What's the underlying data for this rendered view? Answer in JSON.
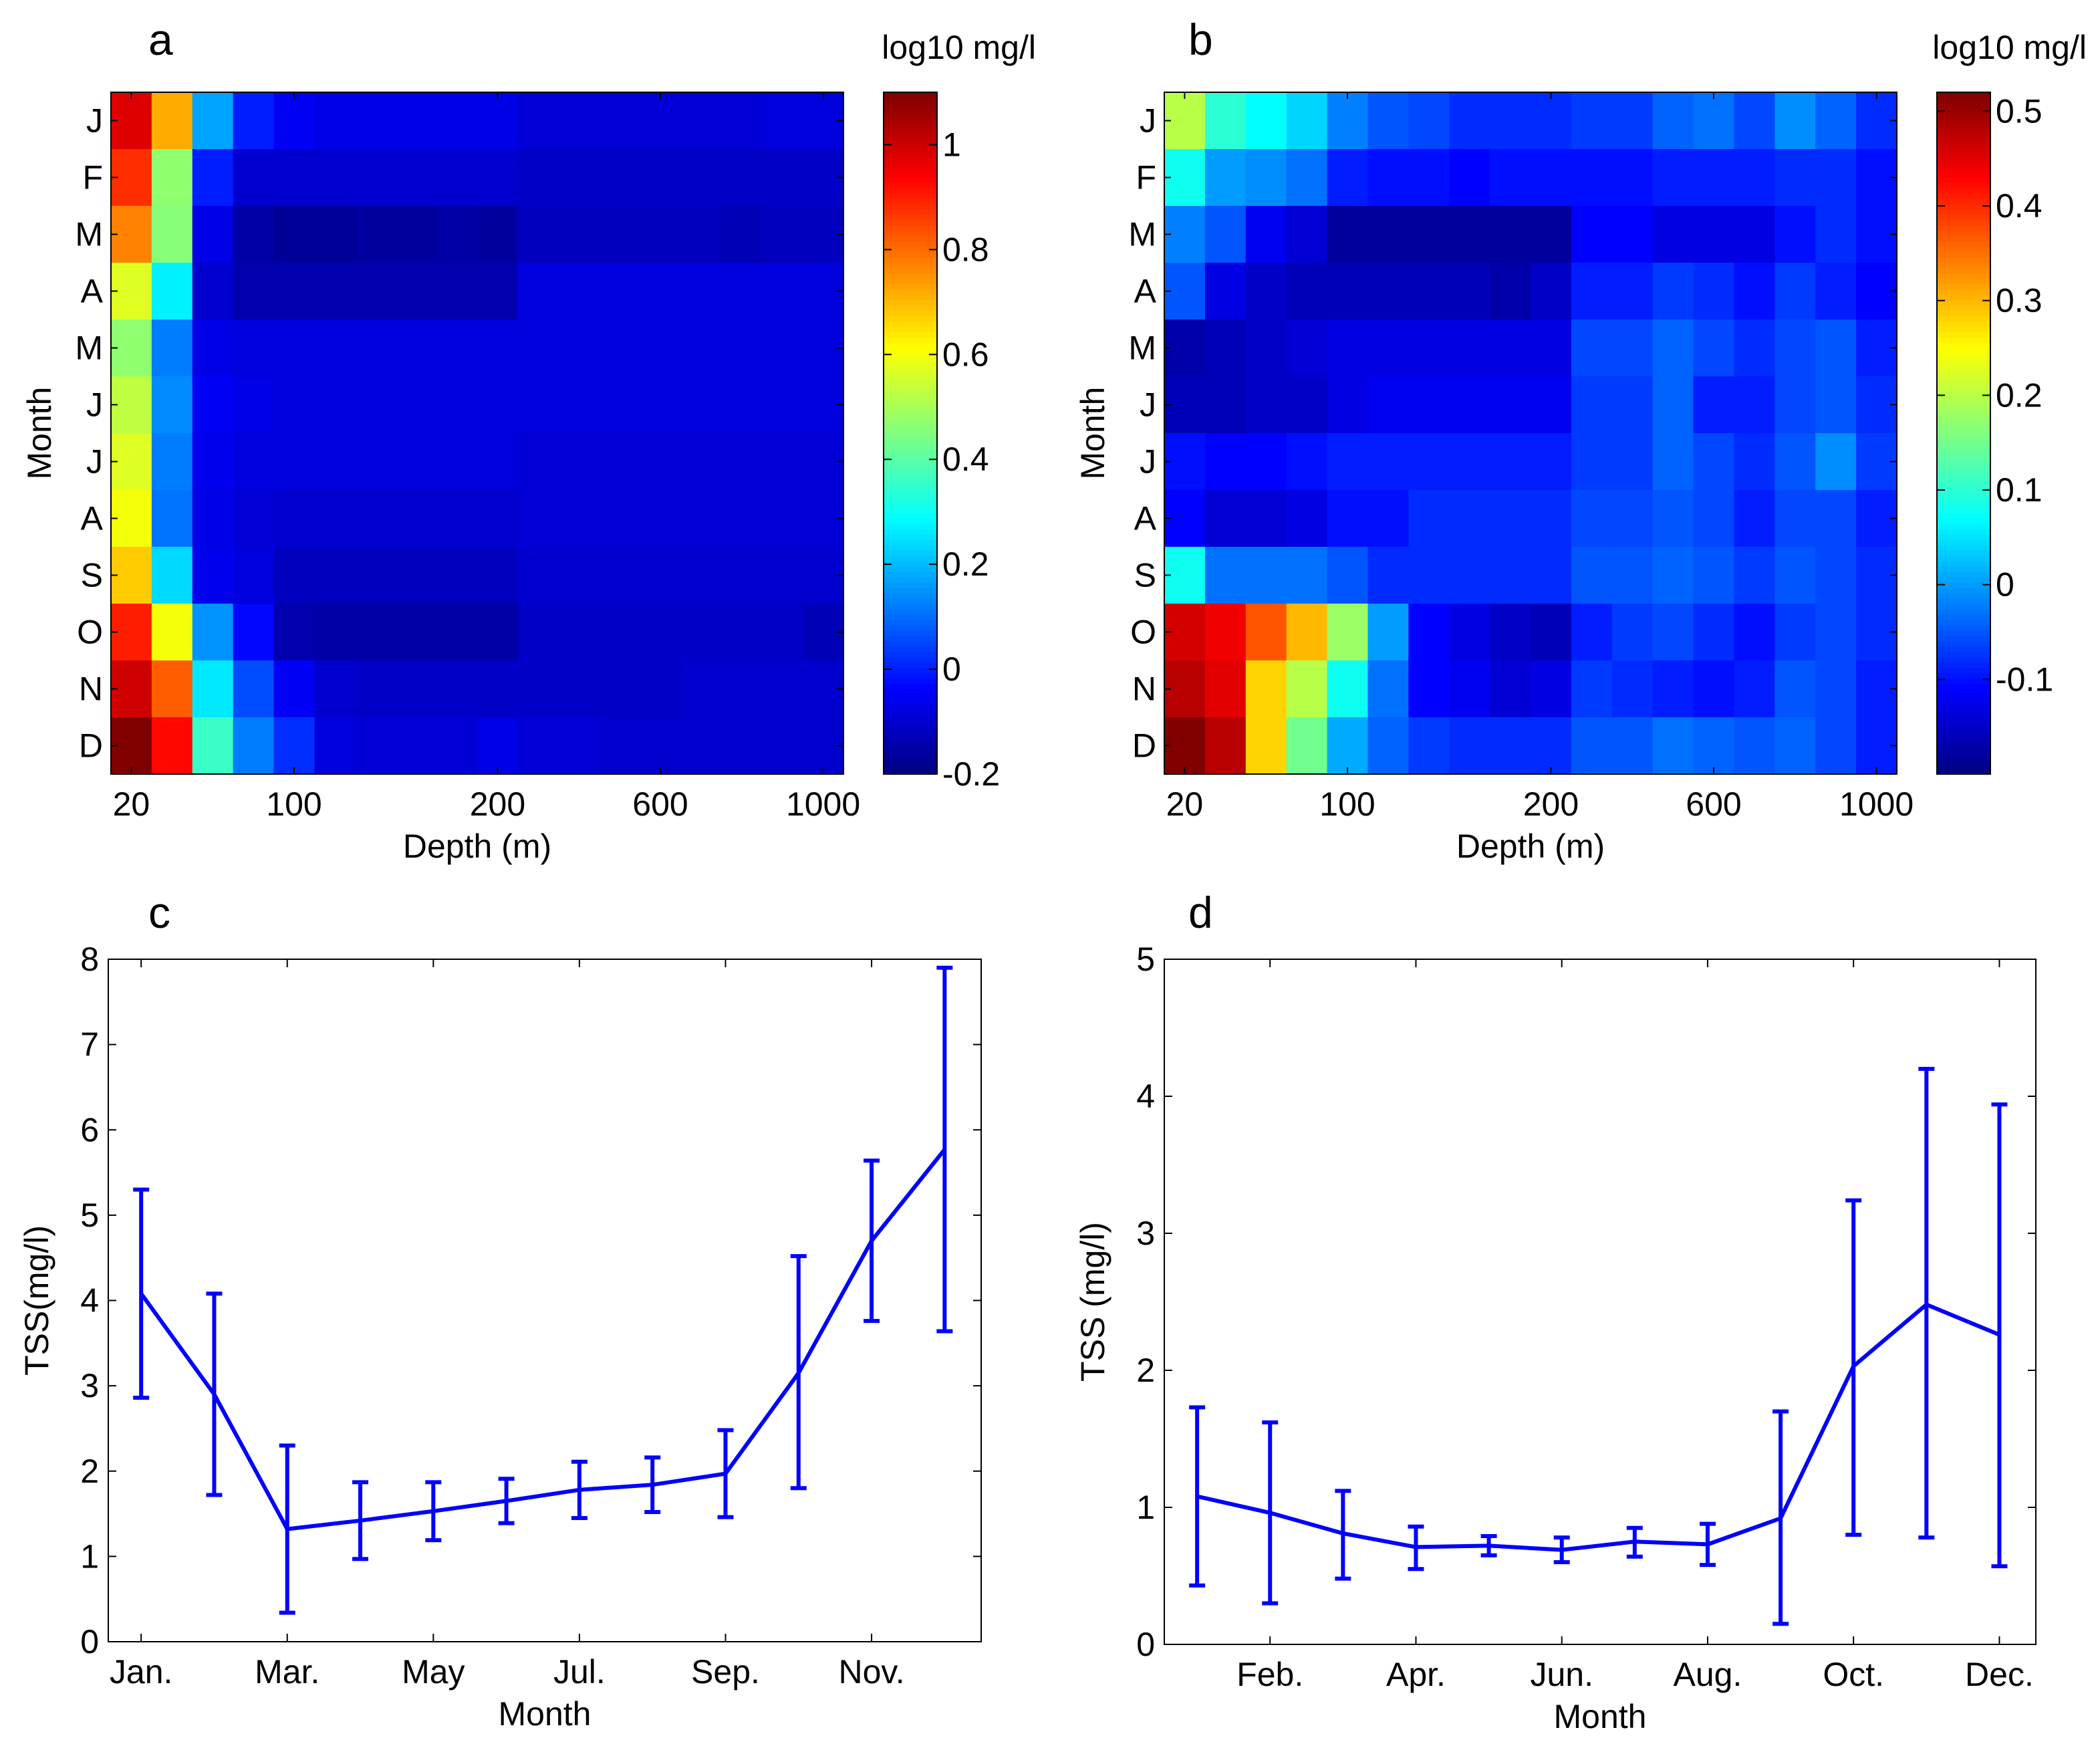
{
  "colors": {
    "line": "#0000ff",
    "axis": "#000000",
    "background": "#ffffff",
    "colormap": "jet"
  },
  "chart_data": [
    {
      "panel": "a",
      "type": "heatmap",
      "title": "",
      "colorbar_label": "log10 mg/l",
      "xlabel": "Depth (m)",
      "ylabel": "Month",
      "x_ticklabels": [
        "20",
        "100",
        "200",
        "600",
        "1000"
      ],
      "x_tick_columns": [
        0.5,
        4.5,
        9.5,
        13.5,
        17.5
      ],
      "y_ticklabels": [
        "J",
        "F",
        "M",
        "A",
        "M",
        "J",
        "J",
        "A",
        "S",
        "O",
        "N",
        "D"
      ],
      "n_columns": 18,
      "clim": [
        -0.2,
        1.1
      ],
      "colorbar_ticks": [
        -0.2,
        0,
        0.2,
        0.4,
        0.6,
        0.8,
        1
      ],
      "colorbar_ticklabels": [
        "-0.2",
        "0",
        "0.2",
        "0.4",
        "0.6",
        "0.8",
        "1"
      ],
      "values": [
        [
          0.98,
          0.72,
          0.17,
          0.0,
          -0.05,
          -0.07,
          -0.07,
          -0.07,
          -0.07,
          -0.07,
          -0.09,
          -0.09,
          -0.09,
          -0.09,
          -0.09,
          -0.09,
          -0.08,
          -0.08
        ],
        [
          0.88,
          0.47,
          0.0,
          -0.1,
          -0.1,
          -0.1,
          -0.1,
          -0.1,
          -0.1,
          -0.1,
          -0.11,
          -0.11,
          -0.11,
          -0.11,
          -0.11,
          -0.11,
          -0.11,
          -0.11
        ],
        [
          0.77,
          0.46,
          -0.07,
          -0.15,
          -0.17,
          -0.17,
          -0.16,
          -0.16,
          -0.15,
          -0.16,
          -0.12,
          -0.12,
          -0.12,
          -0.12,
          -0.12,
          -0.13,
          -0.12,
          -0.12
        ],
        [
          0.57,
          0.27,
          -0.1,
          -0.14,
          -0.14,
          -0.14,
          -0.14,
          -0.14,
          -0.14,
          -0.14,
          -0.08,
          -0.08,
          -0.08,
          -0.08,
          -0.08,
          -0.08,
          -0.08,
          -0.08
        ],
        [
          0.47,
          0.12,
          -0.07,
          -0.08,
          -0.08,
          -0.08,
          -0.08,
          -0.08,
          -0.08,
          -0.08,
          -0.08,
          -0.08,
          -0.08,
          -0.08,
          -0.08,
          -0.08,
          -0.08,
          -0.08
        ],
        [
          0.53,
          0.14,
          -0.05,
          -0.07,
          -0.08,
          -0.08,
          -0.08,
          -0.08,
          -0.08,
          -0.08,
          -0.08,
          -0.08,
          -0.08,
          -0.08,
          -0.08,
          -0.08,
          -0.08,
          -0.08
        ],
        [
          0.57,
          0.12,
          -0.06,
          -0.08,
          -0.08,
          -0.08,
          -0.08,
          -0.08,
          -0.08,
          -0.08,
          -0.09,
          -0.09,
          -0.09,
          -0.09,
          -0.09,
          -0.09,
          -0.09,
          -0.09
        ],
        [
          0.6,
          0.11,
          -0.07,
          -0.09,
          -0.1,
          -0.1,
          -0.1,
          -0.1,
          -0.1,
          -0.1,
          -0.09,
          -0.09,
          -0.09,
          -0.09,
          -0.09,
          -0.09,
          -0.09,
          -0.09
        ],
        [
          0.68,
          0.24,
          -0.06,
          -0.08,
          -0.12,
          -0.12,
          -0.12,
          -0.12,
          -0.12,
          -0.12,
          -0.1,
          -0.1,
          -0.1,
          -0.1,
          -0.1,
          -0.1,
          -0.1,
          -0.1
        ],
        [
          0.9,
          0.6,
          0.15,
          -0.03,
          -0.14,
          -0.15,
          -0.15,
          -0.15,
          -0.15,
          -0.15,
          -0.11,
          -0.11,
          -0.11,
          -0.11,
          -0.11,
          -0.11,
          -0.11,
          -0.13
        ],
        [
          1.0,
          0.82,
          0.26,
          0.06,
          -0.05,
          -0.1,
          -0.11,
          -0.11,
          -0.11,
          -0.11,
          -0.11,
          -0.11,
          -0.11,
          -0.11,
          -0.1,
          -0.1,
          -0.1,
          -0.1
        ],
        [
          1.1,
          0.93,
          0.36,
          0.12,
          0.02,
          -0.08,
          -0.09,
          -0.09,
          -0.09,
          -0.07,
          -0.09,
          -0.09,
          -0.1,
          -0.1,
          -0.1,
          -0.1,
          -0.1,
          -0.1
        ]
      ]
    },
    {
      "panel": "b",
      "type": "heatmap",
      "title": "",
      "colorbar_label": "log10 mg/l",
      "xlabel": "Depth (m)",
      "ylabel": "Month",
      "x_ticklabels": [
        "20",
        "100",
        "200",
        "600",
        "1000"
      ],
      "x_tick_columns": [
        0.5,
        4.5,
        9.5,
        13.5,
        17.5
      ],
      "y_ticklabels": [
        "J",
        "F",
        "M",
        "A",
        "M",
        "J",
        "J",
        "A",
        "S",
        "O",
        "N",
        "D"
      ],
      "n_columns": 18,
      "clim": [
        -0.2,
        0.52
      ],
      "colorbar_ticks": [
        -0.1,
        0,
        0.1,
        0.2,
        0.3,
        0.4,
        0.5
      ],
      "colorbar_ticklabels": [
        "-0.1",
        "0",
        "0.1",
        "0.2",
        "0.3",
        "0.4",
        "0.5"
      ],
      "values": [
        [
          0.2,
          0.1,
          0.07,
          0.04,
          -0.02,
          -0.05,
          -0.06,
          -0.08,
          -0.08,
          -0.08,
          -0.07,
          -0.07,
          -0.04,
          -0.03,
          -0.06,
          -0.01,
          -0.04,
          -0.08
        ],
        [
          0.08,
          0.0,
          -0.01,
          -0.03,
          -0.09,
          -0.1,
          -0.1,
          -0.11,
          -0.1,
          -0.1,
          -0.1,
          -0.1,
          -0.09,
          -0.09,
          -0.09,
          -0.08,
          -0.08,
          -0.1
        ],
        [
          -0.02,
          -0.05,
          -0.12,
          -0.14,
          -0.18,
          -0.18,
          -0.18,
          -0.18,
          -0.18,
          -0.18,
          -0.11,
          -0.11,
          -0.13,
          -0.13,
          -0.13,
          -0.1,
          -0.08,
          -0.1
        ],
        [
          -0.05,
          -0.13,
          -0.15,
          -0.16,
          -0.16,
          -0.16,
          -0.16,
          -0.16,
          -0.17,
          -0.15,
          -0.09,
          -0.09,
          -0.07,
          -0.08,
          -0.1,
          -0.07,
          -0.09,
          -0.11
        ],
        [
          -0.17,
          -0.16,
          -0.15,
          -0.14,
          -0.13,
          -0.13,
          -0.13,
          -0.13,
          -0.13,
          -0.13,
          -0.06,
          -0.06,
          -0.04,
          -0.06,
          -0.08,
          -0.06,
          -0.05,
          -0.09
        ],
        [
          -0.16,
          -0.16,
          -0.15,
          -0.15,
          -0.13,
          -0.12,
          -0.12,
          -0.12,
          -0.12,
          -0.12,
          -0.07,
          -0.07,
          -0.04,
          -0.09,
          -0.09,
          -0.06,
          -0.05,
          -0.08
        ],
        [
          -0.1,
          -0.11,
          -0.11,
          -0.1,
          -0.09,
          -0.09,
          -0.09,
          -0.09,
          -0.09,
          -0.09,
          -0.07,
          -0.07,
          -0.04,
          -0.06,
          -0.08,
          -0.05,
          -0.01,
          -0.07
        ],
        [
          -0.11,
          -0.14,
          -0.14,
          -0.13,
          -0.1,
          -0.1,
          -0.08,
          -0.08,
          -0.08,
          -0.08,
          -0.06,
          -0.06,
          -0.05,
          -0.06,
          -0.09,
          -0.06,
          -0.06,
          -0.09
        ],
        [
          0.08,
          -0.03,
          -0.03,
          -0.03,
          -0.05,
          -0.08,
          -0.08,
          -0.08,
          -0.08,
          -0.08,
          -0.05,
          -0.05,
          -0.04,
          -0.05,
          -0.07,
          -0.05,
          -0.06,
          -0.08
        ],
        [
          0.46,
          0.44,
          0.37,
          0.3,
          0.18,
          0.0,
          -0.11,
          -0.13,
          -0.15,
          -0.16,
          -0.09,
          -0.07,
          -0.06,
          -0.08,
          -0.1,
          -0.07,
          -0.06,
          -0.08
        ],
        [
          0.48,
          0.45,
          0.28,
          0.2,
          0.08,
          -0.03,
          -0.11,
          -0.12,
          -0.14,
          -0.13,
          -0.07,
          -0.08,
          -0.09,
          -0.1,
          -0.09,
          -0.05,
          -0.06,
          -0.09
        ],
        [
          0.52,
          0.48,
          0.28,
          0.15,
          0.01,
          -0.04,
          -0.07,
          -0.08,
          -0.08,
          -0.08,
          -0.05,
          -0.05,
          -0.03,
          -0.04,
          -0.05,
          -0.04,
          -0.06,
          -0.09
        ]
      ]
    },
    {
      "panel": "c",
      "type": "line",
      "title": "",
      "xlabel": "Month",
      "ylabel": "TSS(mg/l)",
      "x": [
        1,
        2,
        3,
        4,
        5,
        6,
        7,
        8,
        9,
        10,
        11,
        12
      ],
      "xlim": [
        0.55,
        12.5
      ],
      "ylim": [
        0,
        8
      ],
      "x_ticks": [
        1,
        3,
        5,
        7,
        9,
        11
      ],
      "x_ticklabels": [
        "Jan.",
        "Mar.",
        "May",
        "Jul.",
        "Sep.",
        "Nov."
      ],
      "y_ticks": [
        0,
        1,
        2,
        3,
        4,
        5,
        6,
        7,
        8
      ],
      "y_ticklabels": [
        "0",
        "1",
        "2",
        "3",
        "4",
        "5",
        "6",
        "7",
        "8"
      ],
      "series": [
        {
          "values": [
            4.08,
            2.9,
            1.32,
            1.42,
            1.53,
            1.65,
            1.78,
            1.84,
            1.97,
            3.15,
            4.7,
            5.77
          ],
          "lower": [
            2.86,
            1.72,
            0.34,
            0.97,
            1.19,
            1.39,
            1.45,
            1.52,
            1.46,
            1.8,
            3.76,
            3.64
          ],
          "upper": [
            5.3,
            4.08,
            2.3,
            1.87,
            1.87,
            1.91,
            2.11,
            2.16,
            2.48,
            4.52,
            5.64,
            7.9
          ]
        }
      ]
    },
    {
      "panel": "d",
      "type": "line",
      "title": "",
      "xlabel": "Month",
      "ylabel": "TSS (mg/l)",
      "x": [
        1,
        2,
        3,
        4,
        5,
        6,
        7,
        8,
        9,
        10,
        11,
        12
      ],
      "xlim": [
        0.55,
        12.5
      ],
      "ylim": [
        0,
        5
      ],
      "x_ticks": [
        2,
        4,
        6,
        8,
        10,
        12
      ],
      "x_ticklabels": [
        "Feb.",
        "Apr.",
        "Jun.",
        "Aug.",
        "Oct.",
        "Dec."
      ],
      "y_ticks": [
        0,
        1,
        2,
        3,
        4,
        5
      ],
      "y_ticklabels": [
        "0",
        "1",
        "2",
        "3",
        "4",
        "5"
      ],
      "series": [
        {
          "values": [
            1.08,
            0.96,
            0.81,
            0.71,
            0.72,
            0.69,
            0.75,
            0.73,
            0.92,
            2.03,
            2.48,
            2.26
          ],
          "lower": [
            0.43,
            0.3,
            0.48,
            0.55,
            0.65,
            0.6,
            0.64,
            0.58,
            0.15,
            0.8,
            0.78,
            0.57
          ],
          "upper": [
            1.73,
            1.62,
            1.12,
            0.86,
            0.79,
            0.78,
            0.85,
            0.88,
            1.7,
            3.24,
            4.2,
            3.94
          ]
        }
      ]
    }
  ]
}
